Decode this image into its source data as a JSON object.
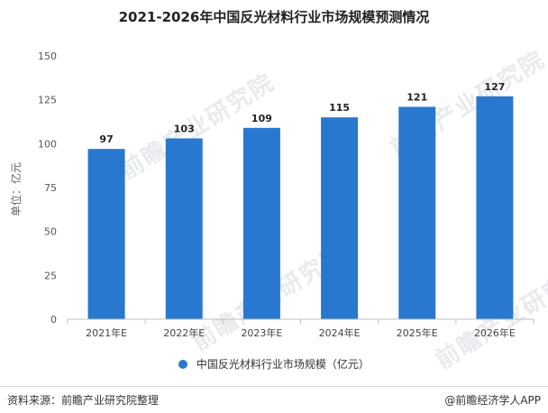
{
  "chart_data": {
    "type": "bar",
    "title": "2021-2026年中国反光材料行业市场规模预测情况",
    "ylabel": "单位：亿元",
    "xlabel": "",
    "categories": [
      "2021年E",
      "2022年E",
      "2023年E",
      "2024年E",
      "2025年E",
      "2026年E"
    ],
    "series": [
      {
        "name": "中国反光材料行业市场规模（亿元）",
        "values": [
          97,
          103,
          109,
          115,
          121,
          127
        ]
      }
    ],
    "ylim": [
      0,
      150
    ],
    "yticks": [
      0,
      25,
      50,
      75,
      100,
      125,
      150
    ],
    "grid": false,
    "legend": "bottom-center",
    "bar_color": "#2878d0"
  },
  "watermark": "前瞻产业研究院",
  "footer": {
    "source": "资料来源：前瞻产业研究院整理",
    "brand": "@前瞻经济学人APP"
  }
}
